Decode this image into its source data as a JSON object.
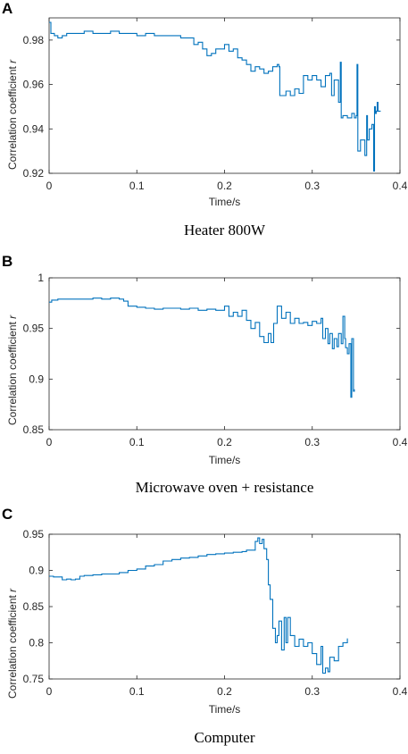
{
  "chart_data": [
    {
      "type": "line",
      "panel": "A",
      "caption": "Heater 800W",
      "xlabel": "Time/s",
      "ylabel_main": "Correlation coefficient",
      "ylabel_var": "r",
      "xlim": [
        0,
        0.4
      ],
      "ylim": [
        0.92,
        0.99
      ],
      "xticks": [
        "0",
        "0.1",
        "0.2",
        "0.3",
        "0.4"
      ],
      "yticks": [
        "0.92",
        "0.94",
        "0.96",
        "0.98"
      ],
      "xtick_values": [
        0,
        0.1,
        0.2,
        0.3,
        0.4
      ],
      "ytick_values": [
        0.92,
        0.94,
        0.96,
        0.98
      ],
      "grid": false,
      "line_color": "#0072BD",
      "series": [
        {
          "x": [
            0,
            0.002,
            0.006,
            0.01,
            0.015,
            0.02,
            0.03,
            0.04,
            0.05,
            0.06,
            0.07,
            0.08,
            0.09,
            0.1,
            0.11,
            0.12,
            0.13,
            0.14,
            0.15,
            0.16,
            0.165,
            0.17,
            0.175,
            0.18,
            0.185,
            0.19,
            0.2,
            0.205,
            0.21,
            0.215,
            0.22,
            0.225,
            0.23,
            0.235,
            0.24,
            0.245,
            0.25,
            0.255,
            0.26,
            0.262,
            0.263,
            0.27,
            0.275,
            0.28,
            0.285,
            0.29,
            0.295,
            0.3,
            0.305,
            0.31,
            0.315,
            0.32,
            0.322,
            0.325,
            0.33,
            0.332,
            0.333,
            0.335,
            0.34,
            0.345,
            0.348,
            0.35,
            0.351,
            0.352,
            0.355,
            0.358,
            0.36,
            0.362,
            0.363,
            0.365,
            0.368,
            0.37,
            0.371,
            0.372,
            0.373,
            0.374,
            0.375,
            0.378
          ],
          "y": [
            0.988,
            0.983,
            0.982,
            0.981,
            0.982,
            0.983,
            0.983,
            0.984,
            0.983,
            0.983,
            0.984,
            0.983,
            0.983,
            0.982,
            0.983,
            0.982,
            0.982,
            0.982,
            0.981,
            0.981,
            0.978,
            0.979,
            0.976,
            0.973,
            0.974,
            0.976,
            0.978,
            0.975,
            0.976,
            0.972,
            0.971,
            0.969,
            0.966,
            0.968,
            0.967,
            0.965,
            0.966,
            0.968,
            0.969,
            0.968,
            0.955,
            0.957,
            0.955,
            0.958,
            0.956,
            0.964,
            0.962,
            0.964,
            0.962,
            0.959,
            0.964,
            0.965,
            0.955,
            0.962,
            0.952,
            0.97,
            0.945,
            0.946,
            0.945,
            0.947,
            0.945,
            0.946,
            0.969,
            0.93,
            0.935,
            0.935,
            0.928,
            0.946,
            0.935,
            0.94,
            0.942,
            0.921,
            0.95,
            0.947,
            0.948,
            0.952,
            0.948,
            0.948
          ]
        }
      ]
    },
    {
      "type": "line",
      "panel": "B",
      "caption": "Microwave oven + resistance",
      "xlabel": "Time/s",
      "ylabel_main": "Correlation coefficient",
      "ylabel_var": "r",
      "xlim": [
        0,
        0.4
      ],
      "ylim": [
        0.85,
        1
      ],
      "xticks": [
        "0",
        "0.1",
        "0.2",
        "0.3",
        "0.4"
      ],
      "yticks": [
        "0.85",
        "0.9",
        "0.95",
        "1"
      ],
      "xtick_values": [
        0,
        0.1,
        0.2,
        0.3,
        0.4
      ],
      "ytick_values": [
        0.85,
        0.9,
        0.95,
        1
      ],
      "grid": false,
      "line_color": "#0072BD",
      "series": [
        {
          "x": [
            0,
            0.003,
            0.01,
            0.02,
            0.03,
            0.04,
            0.05,
            0.06,
            0.07,
            0.08,
            0.085,
            0.09,
            0.1,
            0.11,
            0.12,
            0.13,
            0.14,
            0.15,
            0.16,
            0.17,
            0.18,
            0.19,
            0.2,
            0.205,
            0.21,
            0.215,
            0.22,
            0.225,
            0.23,
            0.235,
            0.24,
            0.245,
            0.25,
            0.253,
            0.256,
            0.26,
            0.265,
            0.27,
            0.275,
            0.28,
            0.285,
            0.29,
            0.295,
            0.3,
            0.305,
            0.31,
            0.312,
            0.315,
            0.318,
            0.32,
            0.323,
            0.325,
            0.328,
            0.33,
            0.333,
            0.335,
            0.337,
            0.338,
            0.34,
            0.342,
            0.344,
            0.345,
            0.347,
            0.348
          ],
          "y": [
            0.976,
            0.978,
            0.979,
            0.979,
            0.979,
            0.979,
            0.98,
            0.979,
            0.98,
            0.979,
            0.977,
            0.972,
            0.971,
            0.97,
            0.969,
            0.97,
            0.97,
            0.969,
            0.97,
            0.968,
            0.969,
            0.968,
            0.972,
            0.962,
            0.966,
            0.962,
            0.968,
            0.958,
            0.95,
            0.956,
            0.942,
            0.936,
            0.945,
            0.936,
            0.955,
            0.972,
            0.96,
            0.966,
            0.955,
            0.96,
            0.955,
            0.956,
            0.953,
            0.957,
            0.955,
            0.96,
            0.94,
            0.95,
            0.935,
            0.945,
            0.93,
            0.94,
            0.932,
            0.945,
            0.935,
            0.962,
            0.94,
            0.931,
            0.925,
            0.935,
            0.882,
            0.94,
            0.888,
            0.89
          ]
        }
      ]
    },
    {
      "type": "line",
      "panel": "C",
      "caption": "Computer",
      "xlabel": "Time/s",
      "ylabel_main": "Correlation coefficient",
      "ylabel_var": "r",
      "xlim": [
        0,
        0.4
      ],
      "ylim": [
        0.75,
        0.95
      ],
      "xticks": [
        "0",
        "0.1",
        "0.2",
        "0.3",
        "0.4"
      ],
      "yticks": [
        "0.75",
        "0.8",
        "0.85",
        "0.9",
        "0.95"
      ],
      "xtick_values": [
        0,
        0.1,
        0.2,
        0.3,
        0.4
      ],
      "ytick_values": [
        0.75,
        0.8,
        0.85,
        0.9,
        0.95
      ],
      "grid": false,
      "line_color": "#0072BD",
      "series": [
        {
          "x": [
            0,
            0.005,
            0.01,
            0.015,
            0.02,
            0.025,
            0.03,
            0.035,
            0.04,
            0.05,
            0.06,
            0.07,
            0.08,
            0.09,
            0.1,
            0.11,
            0.12,
            0.13,
            0.14,
            0.15,
            0.16,
            0.17,
            0.18,
            0.19,
            0.2,
            0.21,
            0.22,
            0.225,
            0.23,
            0.235,
            0.238,
            0.24,
            0.243,
            0.245,
            0.248,
            0.25,
            0.252,
            0.255,
            0.258,
            0.26,
            0.262,
            0.265,
            0.268,
            0.27,
            0.272,
            0.275,
            0.28,
            0.285,
            0.29,
            0.295,
            0.3,
            0.305,
            0.31,
            0.312,
            0.315,
            0.318,
            0.32,
            0.325,
            0.33,
            0.335,
            0.34
          ],
          "y": [
            0.892,
            0.891,
            0.891,
            0.887,
            0.888,
            0.887,
            0.888,
            0.892,
            0.893,
            0.894,
            0.895,
            0.895,
            0.897,
            0.9,
            0.902,
            0.906,
            0.908,
            0.913,
            0.915,
            0.917,
            0.918,
            0.92,
            0.922,
            0.923,
            0.924,
            0.925,
            0.926,
            0.928,
            0.928,
            0.94,
            0.945,
            0.937,
            0.943,
            0.93,
            0.915,
            0.88,
            0.86,
            0.82,
            0.8,
            0.81,
            0.83,
            0.79,
            0.835,
            0.8,
            0.835,
            0.81,
            0.795,
            0.805,
            0.795,
            0.8,
            0.785,
            0.77,
            0.795,
            0.758,
            0.765,
            0.76,
            0.78,
            0.775,
            0.795,
            0.8,
            0.806
          ]
        }
      ]
    }
  ]
}
